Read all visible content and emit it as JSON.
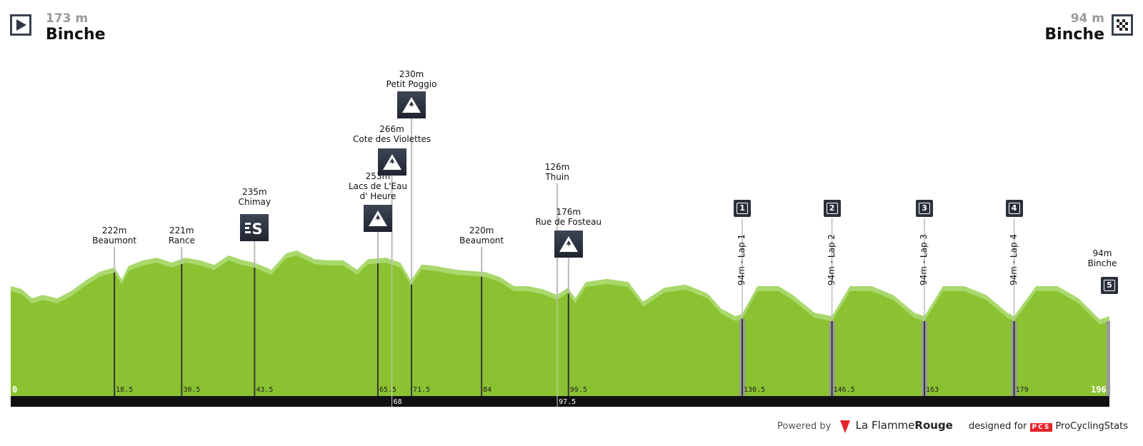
{
  "start": {
    "altitude": "173 m",
    "name": "Binche",
    "icon": "play-icon"
  },
  "finish": {
    "altitude": "94 m",
    "name": "Binche",
    "icon": "checkered-flag-icon"
  },
  "colors": {
    "profile": "#8bc232",
    "profile_light": "#a9d86c",
    "bar": "#111111",
    "badge": "#2a303b",
    "lap_bar": "#999999"
  },
  "chart_data": {
    "type": "area",
    "xlabel": "",
    "ylabel": "",
    "xlim": [
      0,
      196
    ],
    "profile": [
      [
        0,
        173
      ],
      [
        1.9,
        166
      ],
      [
        3.8,
        141
      ],
      [
        5.7,
        150
      ],
      [
        8.3,
        141
      ],
      [
        10.8,
        160
      ],
      [
        13.4,
        188
      ],
      [
        15.9,
        211
      ],
      [
        18.5,
        222
      ],
      [
        19.8,
        190
      ],
      [
        21,
        226
      ],
      [
        23.6,
        241
      ],
      [
        26.1,
        248
      ],
      [
        28.7,
        235
      ],
      [
        31.2,
        248
      ],
      [
        33.8,
        241
      ],
      [
        36.3,
        229
      ],
      [
        38.9,
        254
      ],
      [
        41.4,
        241
      ],
      [
        43.5,
        235
      ],
      [
        46.5,
        216
      ],
      [
        49.1,
        259
      ],
      [
        51,
        267
      ],
      [
        54.2,
        244
      ],
      [
        56.7,
        241
      ],
      [
        59.3,
        241
      ],
      [
        61.8,
        216
      ],
      [
        63.7,
        244
      ],
      [
        66.9,
        248
      ],
      [
        69.5,
        235
      ],
      [
        71.4,
        188
      ],
      [
        73.3,
        230
      ],
      [
        75.8,
        226
      ],
      [
        79.6,
        216
      ],
      [
        84.7,
        210
      ],
      [
        87.3,
        197
      ],
      [
        89.8,
        173
      ],
      [
        92.4,
        173
      ],
      [
        94.9,
        165
      ],
      [
        97.5,
        150
      ],
      [
        99.4,
        169
      ],
      [
        100.7,
        141
      ],
      [
        102.6,
        184
      ],
      [
        106.4,
        192
      ],
      [
        110.2,
        184
      ],
      [
        112.8,
        132
      ],
      [
        116.6,
        169
      ],
      [
        120.4,
        177
      ],
      [
        124.3,
        154
      ],
      [
        126.8,
        113
      ],
      [
        129.3,
        94
      ],
      [
        130.5,
        100
      ],
      [
        133.2,
        173
      ],
      [
        137,
        173
      ],
      [
        139.5,
        150
      ],
      [
        143.4,
        103
      ],
      [
        146.5,
        94
      ],
      [
        149.7,
        173
      ],
      [
        153.6,
        173
      ],
      [
        157.4,
        150
      ],
      [
        161.2,
        103
      ],
      [
        163,
        94
      ],
      [
        166.3,
        173
      ],
      [
        170.1,
        173
      ],
      [
        174,
        150
      ],
      [
        177.8,
        103
      ],
      [
        179,
        94
      ],
      [
        182.9,
        173
      ],
      [
        186.7,
        173
      ],
      [
        190.5,
        141
      ],
      [
        194.3,
        85
      ],
      [
        196,
        94
      ]
    ],
    "km_ticks": [
      "0",
      "18.5",
      "30.5",
      "43.5",
      "65.5",
      "71.5",
      "84",
      "99.5",
      "130.5",
      "146.5",
      "163",
      "179",
      "196"
    ],
    "km_ticks_bar": [
      "68",
      "97.5"
    ],
    "points": [
      {
        "km": 18.5,
        "alt": "222m",
        "name": "Beaumont",
        "type": "town"
      },
      {
        "km": 30.5,
        "alt": "221m",
        "name": "Rance",
        "type": "town"
      },
      {
        "km": 43.5,
        "alt": "235m",
        "name": "Chimay",
        "type": "sprint",
        "icon": "sprint-icon"
      },
      {
        "km": 65.5,
        "alt": "253m",
        "name": "Lacs de L'Eau",
        "name2": "d' Heure",
        "type": "climb",
        "icon": "mountain-icon"
      },
      {
        "km": 68,
        "alt": "266m",
        "name": "Cote des Violettes",
        "type": "climb",
        "icon": "mountain-icon"
      },
      {
        "km": 71.5,
        "alt": "230m",
        "name": "Petit Poggio",
        "type": "climb",
        "icon": "mountain-icon"
      },
      {
        "km": 84,
        "alt": "220m",
        "name": "Beaumont",
        "type": "town"
      },
      {
        "km": 97.5,
        "alt": "126m",
        "name": "Thuin",
        "type": "town"
      },
      {
        "km": 99.5,
        "alt": "176m",
        "name": "Rue de Fosteau",
        "type": "climb",
        "icon": "mountain-icon"
      }
    ],
    "laps": [
      {
        "km": 130.5,
        "number": "1",
        "label": "94m - Lap 1"
      },
      {
        "km": 146.5,
        "number": "2",
        "label": "94m - Lap 2"
      },
      {
        "km": 163,
        "number": "3",
        "label": "94m - Lap 3"
      },
      {
        "km": 179,
        "number": "4",
        "label": "94m - Lap 4"
      }
    ],
    "finish_point": {
      "km": 196,
      "number": "5",
      "alt": "94m",
      "name": "Binche"
    }
  },
  "footer": {
    "powered_by": "Powered by",
    "brand1_a": "La Flamme",
    "brand1_b": "Rouge",
    "designed_for": "designed for",
    "pcs": "PCS",
    "brand2": "ProCyclingStats"
  }
}
